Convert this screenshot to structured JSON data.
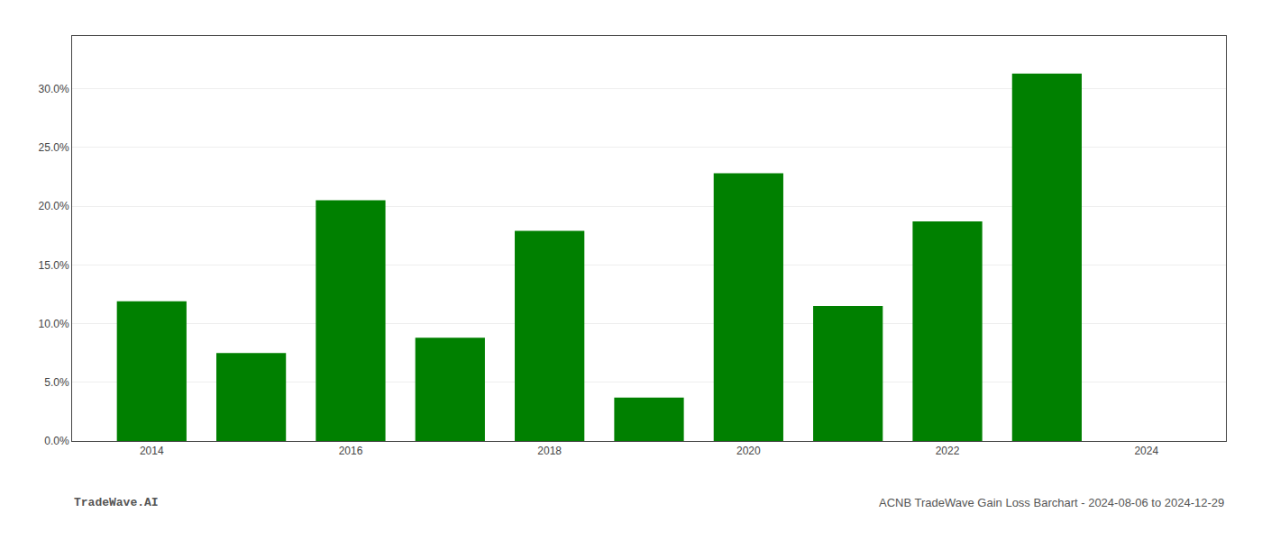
{
  "chart_data": {
    "type": "bar",
    "x": [
      2014,
      2015,
      2016,
      2017,
      2018,
      2019,
      2020,
      2021,
      2022,
      2023
    ],
    "values": [
      0.119,
      0.075,
      0.205,
      0.088,
      0.179,
      0.037,
      0.228,
      0.115,
      0.187,
      0.313
    ],
    "color": "#008000",
    "xlim": [
      2013.2,
      2024.8
    ],
    "xticks": [
      2014,
      2016,
      2018,
      2020,
      2022,
      2024
    ],
    "ylim": [
      0,
      0.345
    ],
    "yticks": [
      {
        "value": 0.0,
        "label": "0.0%"
      },
      {
        "value": 0.05,
        "label": "5.0%"
      },
      {
        "value": 0.1,
        "label": "10.0%"
      },
      {
        "value": 0.15,
        "label": "15.0%"
      },
      {
        "value": 0.2,
        "label": "20.0%"
      },
      {
        "value": 0.25,
        "label": "25.0%"
      },
      {
        "value": 0.3,
        "label": "30.0%"
      }
    ],
    "grid": true,
    "annotations": [
      "TradeWave.AI",
      "ACNB TradeWave Gain Loss Barchart - 2024-08-06 to 2024-12-29"
    ]
  }
}
